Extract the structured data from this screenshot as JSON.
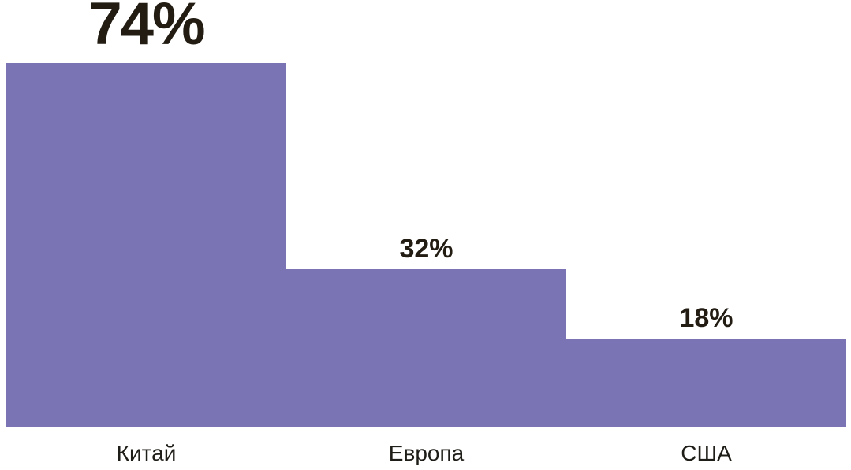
{
  "chart_data": {
    "type": "bar",
    "categories": [
      "Китай",
      "Европа",
      "США"
    ],
    "values": [
      74,
      32,
      18
    ],
    "value_labels": [
      "74%",
      "32%",
      "18%"
    ],
    "series_name": "",
    "title": "",
    "xlabel": "",
    "ylabel": "",
    "ylim": [
      0,
      74
    ],
    "grid": false,
    "legend": false,
    "bars_contiguous": true,
    "colors": {
      "bar": "#7a74b4",
      "value_text": "#221c13",
      "category_text": "#1f1d17",
      "background": "#ffffff"
    }
  }
}
